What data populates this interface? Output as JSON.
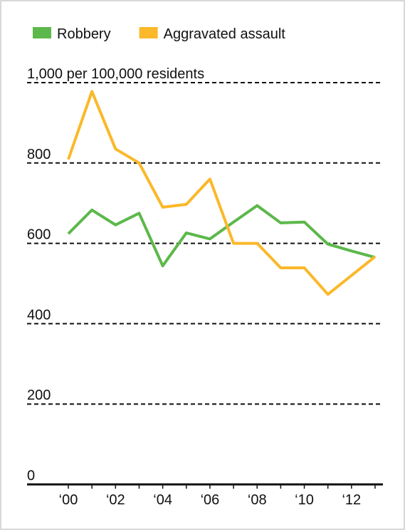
{
  "chart_data": {
    "type": "line",
    "categories": [
      "‘00",
      null,
      "‘02",
      null,
      "‘04",
      null,
      "‘06",
      null,
      "‘08",
      null,
      "‘10",
      null,
      "‘12",
      null
    ],
    "series": [
      {
        "name": "Robbery",
        "color": "#5cb84a",
        "values": [
          624,
          683,
          646,
          675,
          544,
          626,
          611,
          653,
          694,
          651,
          653,
          598,
          581,
          565
        ]
      },
      {
        "name": "Aggravated assault",
        "color": "#fbb829",
        "values": [
          809,
          978,
          835,
          800,
          690,
          697,
          760,
          600,
          600,
          539,
          539,
          473,
          520,
          567
        ]
      }
    ],
    "ylim": [
      0,
      1000
    ],
    "yticks": [
      0,
      200,
      400,
      600,
      800,
      {
        "value": 1000,
        "label": "1,000 per 100,000 residents"
      }
    ],
    "grid": true,
    "legend": "top"
  }
}
